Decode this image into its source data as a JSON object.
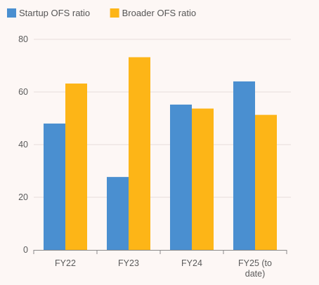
{
  "chart_data": {
    "type": "bar",
    "categories": [
      [
        "FY22"
      ],
      [
        "FY23"
      ],
      [
        "FY24"
      ],
      [
        "FY25 (to",
        "date)"
      ]
    ],
    "series": [
      {
        "name": "Startup OFS ratio",
        "color": "#4a8fd0",
        "values": [
          48,
          27.7,
          55.2,
          64
        ]
      },
      {
        "name": "Broader OFS ratio",
        "color": "#fdb517",
        "values": [
          63.2,
          73.2,
          53.7,
          51.3
        ]
      }
    ],
    "ylim": [
      0,
      80
    ],
    "yticks": [
      0,
      20,
      40,
      60,
      80
    ],
    "grid": true,
    "legend": "top-left",
    "title": "",
    "xlabel": "",
    "ylabel": ""
  }
}
